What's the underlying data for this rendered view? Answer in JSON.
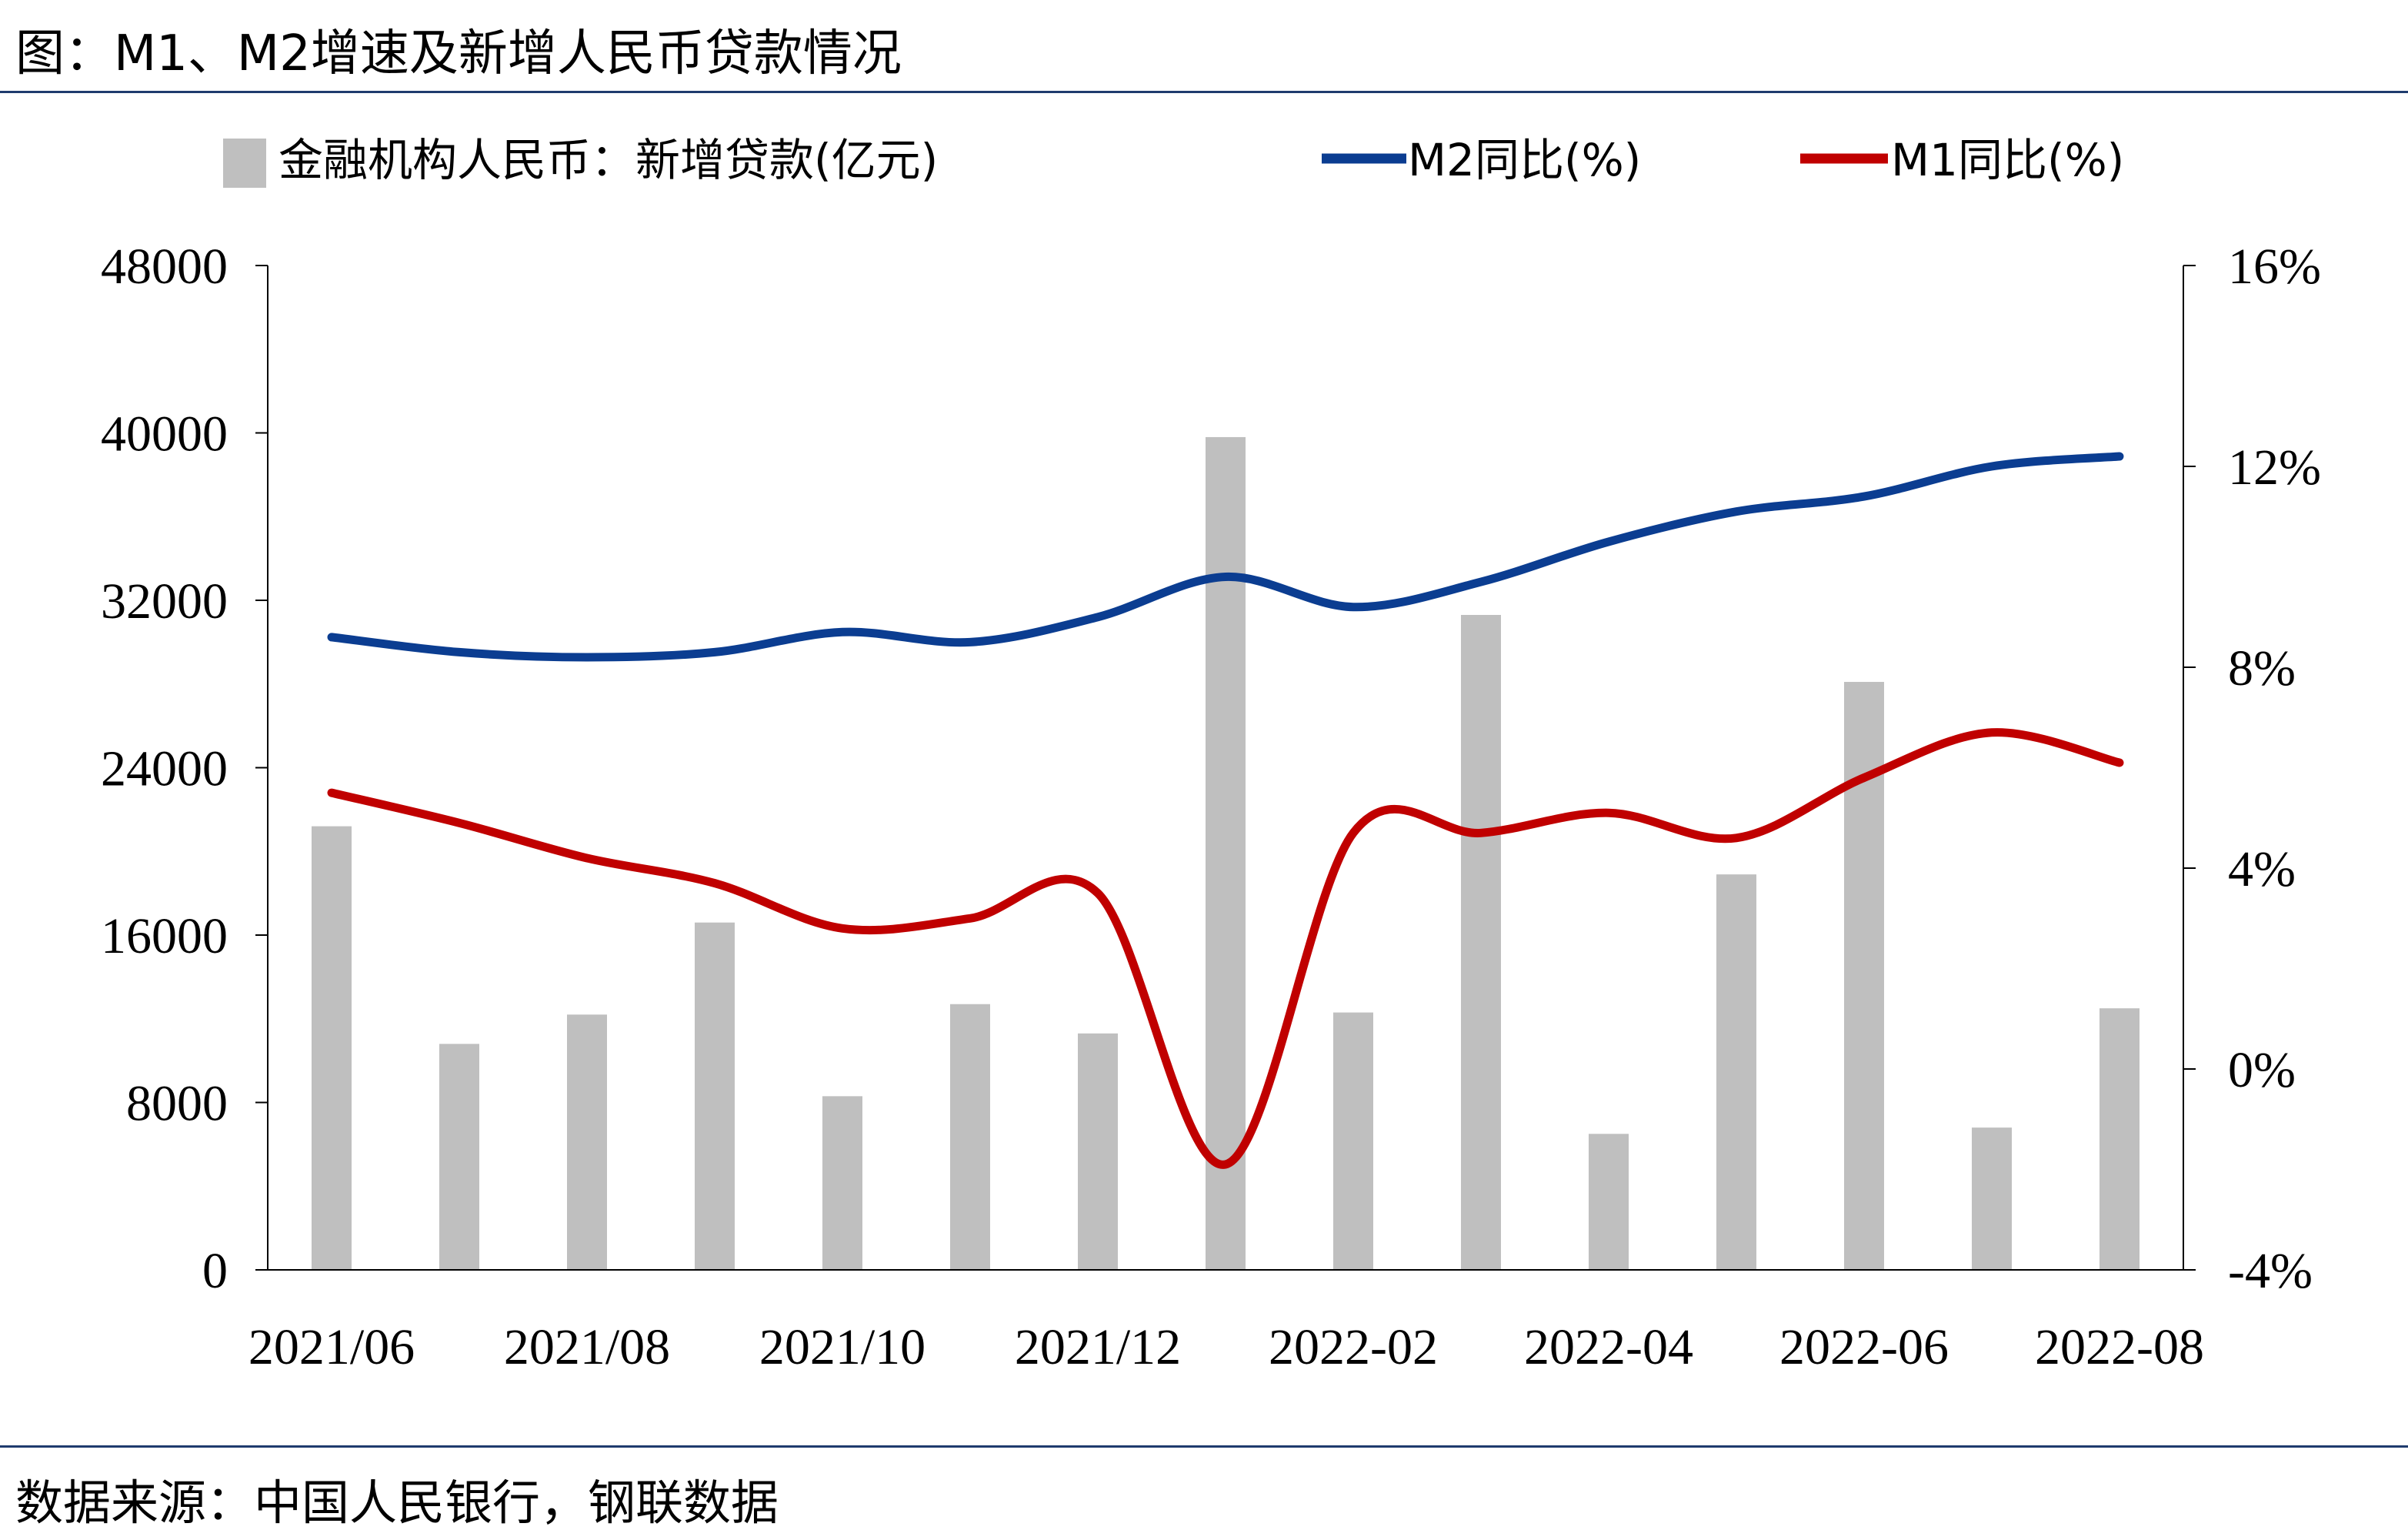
{
  "title": "图：M1、M2增速及新增人民币贷款情况",
  "source": "数据来源：中国人民银行，钢联数据",
  "chart_data": {
    "type": "bar+line",
    "x": [
      "2021/06",
      "2021/07",
      "2021/08",
      "2021/09",
      "2021/10",
      "2021/11",
      "2021/12",
      "2022/01",
      "2022/02",
      "2022/03",
      "2022/04",
      "2022/05",
      "2022/06",
      "2022/07",
      "2022/08"
    ],
    "x_tick_labels": [
      "2021/06",
      "2021/08",
      "2021/10",
      "2021/12",
      "2022-02",
      "2022-04",
      "2022-06",
      "2022-08"
    ],
    "left_axis": {
      "ylim": [
        0,
        48000
      ],
      "ticks": [
        "0",
        "8000",
        "16000",
        "24000",
        "32000",
        "40000",
        "48000"
      ]
    },
    "right_axis": {
      "ylim": [
        -4,
        16
      ],
      "ticks": [
        "-4%",
        "0%",
        "4%",
        "8%",
        "12%",
        "16%"
      ]
    },
    "legend_position": "top",
    "series": [
      {
        "name": "金融机构人民币：新增贷款(亿元)",
        "kind": "bar",
        "axis": "left",
        "color": "#bfbfbf",
        "values": [
          21200,
          10800,
          12200,
          16600,
          8300,
          12700,
          11300,
          39800,
          12300,
          31300,
          6500,
          18900,
          28100,
          6800,
          12500
        ]
      },
      {
        "name": "M2同比(%)",
        "kind": "line",
        "axis": "right",
        "color": "#0b3d91",
        "values": [
          8.6,
          8.3,
          8.2,
          8.3,
          8.7,
          8.5,
          9.0,
          9.8,
          9.2,
          9.7,
          10.5,
          11.1,
          11.4,
          12.0,
          12.2
        ]
      },
      {
        "name": "M1同比(%)",
        "kind": "line",
        "axis": "right",
        "color": "#c00000",
        "values": [
          5.5,
          4.9,
          4.2,
          3.7,
          2.8,
          3.0,
          3.5,
          -1.9,
          4.7,
          4.7,
          5.1,
          4.6,
          5.8,
          6.7,
          6.1
        ]
      }
    ]
  }
}
